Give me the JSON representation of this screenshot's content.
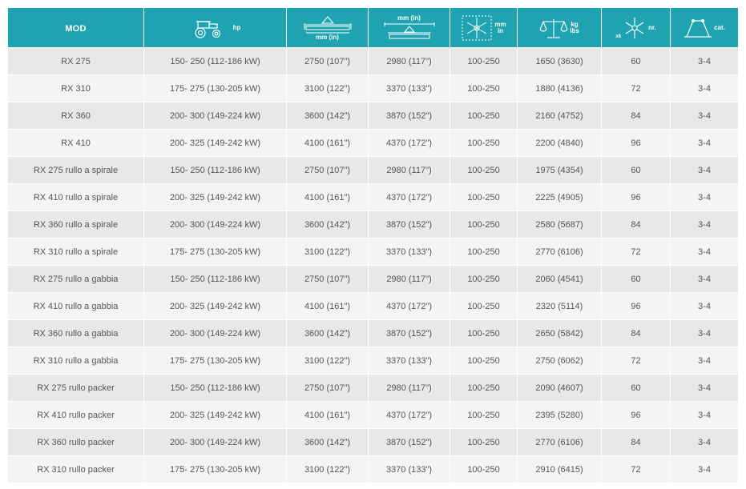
{
  "columns": [
    {
      "key": "mod",
      "label": "MOD",
      "icon": ""
    },
    {
      "key": "hp",
      "label": "hp",
      "icon": "tractor-icon"
    },
    {
      "key": "working_width",
      "label": "mm (in)",
      "icon": "working-width-icon"
    },
    {
      "key": "total_width",
      "label": "mm (in)",
      "icon": "total-width-icon"
    },
    {
      "key": "rotor",
      "label_top": "mm",
      "label_bottom": "in",
      "icon": "rotor-diameter-icon"
    },
    {
      "key": "weight",
      "label_top": "kg",
      "label_bottom": "lbs",
      "icon": "scale-icon"
    },
    {
      "key": "tines",
      "label": "nr.",
      "label_small": "x6",
      "icon": "tines-icon"
    },
    {
      "key": "cat",
      "label": "cat.",
      "icon": "hitch-category-icon"
    }
  ],
  "rows": [
    [
      "RX 275",
      "150- 250 (112-186 kW)",
      "2750 (107\")",
      "2980 (117\")",
      "100-250",
      "1650 (3630)",
      "60",
      "3-4"
    ],
    [
      "RX 310",
      "175- 275 (130-205 kW)",
      "3100 (122\")",
      "3370 (133\")",
      "100-250",
      "1880 (4136)",
      "72",
      "3-4"
    ],
    [
      "RX 360",
      "200- 300 (149-224 kW)",
      "3600 (142\")",
      "3870 (152\")",
      "100-250",
      "2160 (4752)",
      "84",
      "3-4"
    ],
    [
      "RX 410",
      "200- 325 (149-242 kW)",
      "4100 (161\")",
      "4370 (172\")",
      "100-250",
      "2200 (4840)",
      "96",
      "3-4"
    ],
    [
      "RX 275 rullo a spirale",
      "150- 250 (112-186 kW)",
      "2750 (107\")",
      "2980 (117\")",
      "100-250",
      "1975 (4354)",
      "60",
      "3-4"
    ],
    [
      "RX 410 rullo a spirale",
      "200- 325 (149-242 kW)",
      "4100 (161\")",
      "4370 (172\")",
      "100-250",
      "2225 (4905)",
      "96",
      "3-4"
    ],
    [
      "RX 360 rullo a spirale",
      "200- 300 (149-224 kW)",
      "3600 (142\")",
      "3870 (152\")",
      "100-250",
      "2580 (5687)",
      "84",
      "3-4"
    ],
    [
      "RX 310 rullo a spirale",
      "175- 275 (130-205 kW)",
      "3100 (122\")",
      "3370 (133\")",
      "100-250",
      "2770 (6106)",
      "72",
      "3-4"
    ],
    [
      "RX 275 rullo a gabbia",
      "150- 250 (112-186 kW)",
      "2750 (107\")",
      "2980 (117\")",
      "100-250",
      "2060 (4541)",
      "60",
      "3-4"
    ],
    [
      "RX 410 rullo a gabbia",
      "200- 325 (149-242 kW)",
      "4100 (161\")",
      "4370 (172\")",
      "100-250",
      "2320 (5114)",
      "96",
      "3-4"
    ],
    [
      "RX 360 rullo a gabbia",
      "200- 300 (149-224 kW)",
      "3600 (142\")",
      "3870 (152\")",
      "100-250",
      "2650 (5842)",
      "84",
      "3-4"
    ],
    [
      "RX 310 rullo a gabbia",
      "175- 275 (130-205 kW)",
      "3100 (122\")",
      "3370 (133\")",
      "100-250",
      "2750 (6062)",
      "72",
      "3-4"
    ],
    [
      "RX 275 rullo packer",
      "150- 250 (112-186 kW)",
      "2750 (107\")",
      "2980 (117\")",
      "100-250",
      "2090 (4607)",
      "60",
      "3-4"
    ],
    [
      "RX 410 rullo packer",
      "200- 325 (149-242 kW)",
      "4100 (161\")",
      "4370 (172\")",
      "100-250",
      "2395 (5280)",
      "96",
      "3-4"
    ],
    [
      "RX 360 rullo packer",
      "200- 300 (149-224 kW)",
      "3600 (142\")",
      "3870 (152\")",
      "100-250",
      "2770 (6106)",
      "84",
      "3-4"
    ],
    [
      "RX 310 rullo packer",
      "175- 275 (130-205 kW)",
      "3100 (122\")",
      "3370 (133\")",
      "100-250",
      "2910 (6415)",
      "72",
      "3-4"
    ]
  ],
  "colors": {
    "header_bg": "#1fa3b1",
    "row_odd": "#e8e8e8",
    "row_even": "#f4f4f4",
    "text": "#555555"
  }
}
